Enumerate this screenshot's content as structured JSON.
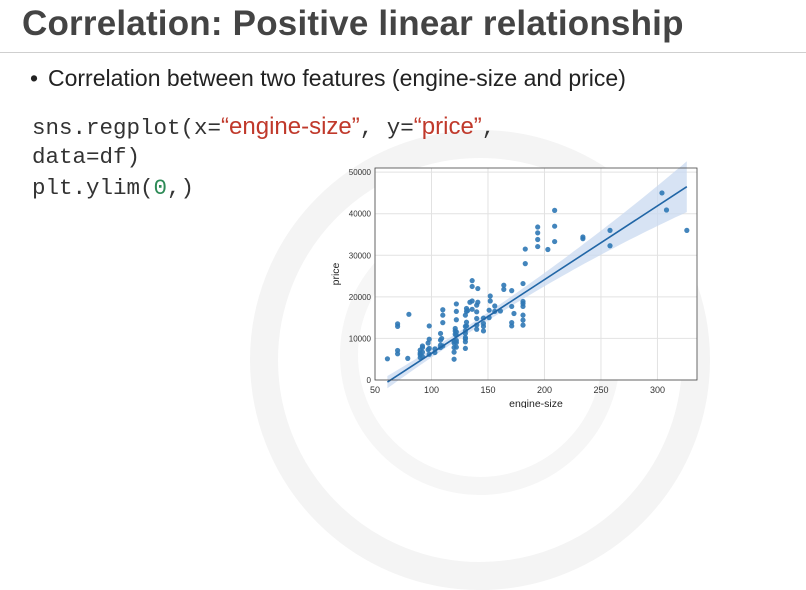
{
  "slide": {
    "title": "Correlation: Positive linear relationship",
    "bullet": "Correlation between two features (engine-size and price)"
  },
  "code": {
    "line1_a": "sns.regplot(x=",
    "line1_str1": "“engine-size”",
    "line1_b": ", y=",
    "line1_str2": "“price”",
    "line1_c": ",",
    "line2": "data=df)",
    "line3_a": "plt.ylim(",
    "line3_num": "0",
    "line3_b": ",)"
  },
  "colors": {
    "point": "#2f78b5",
    "line": "#2166a6",
    "band": "#c9daf0",
    "string": "#c0392b",
    "number": "#2e8b57"
  },
  "chart_data": {
    "type": "scatter",
    "xlabel": "engine-size",
    "ylabel": "price",
    "xlim": [
      50,
      335
    ],
    "ylim": [
      0,
      51000
    ],
    "xticks": [
      50,
      100,
      150,
      200,
      250,
      300
    ],
    "yticks": [
      0,
      10000,
      20000,
      30000,
      40000,
      50000
    ],
    "grid": true,
    "points": [
      [
        61,
        5100
      ],
      [
        70,
        6300
      ],
      [
        70,
        7100
      ],
      [
        70,
        12900
      ],
      [
        70,
        13500
      ],
      [
        79,
        5200
      ],
      [
        80,
        15800
      ],
      [
        90,
        5400
      ],
      [
        90,
        6100
      ],
      [
        90,
        6500
      ],
      [
        90,
        7200
      ],
      [
        92,
        5600
      ],
      [
        92,
        6700
      ],
      [
        92,
        7800
      ],
      [
        92,
        8200
      ],
      [
        97,
        7300
      ],
      [
        97,
        8900
      ],
      [
        98,
        6200
      ],
      [
        98,
        7600
      ],
      [
        98,
        9800
      ],
      [
        98,
        13000
      ],
      [
        103,
        6600
      ],
      [
        103,
        7500
      ],
      [
        108,
        7800
      ],
      [
        108,
        8400
      ],
      [
        108,
        9600
      ],
      [
        108,
        11200
      ],
      [
        109,
        10000
      ],
      [
        110,
        8200
      ],
      [
        110,
        13800
      ],
      [
        110,
        15600
      ],
      [
        110,
        16900
      ],
      [
        120,
        5000
      ],
      [
        120,
        6700
      ],
      [
        120,
        7800
      ],
      [
        120,
        8900
      ],
      [
        120,
        9300
      ],
      [
        121,
        11000
      ],
      [
        121,
        11800
      ],
      [
        121,
        12400
      ],
      [
        122,
        7900
      ],
      [
        122,
        9000
      ],
      [
        122,
        9500
      ],
      [
        122,
        10800
      ],
      [
        122,
        11600
      ],
      [
        122,
        14500
      ],
      [
        122,
        16500
      ],
      [
        122,
        18300
      ],
      [
        130,
        7600
      ],
      [
        130,
        9200
      ],
      [
        130,
        9900
      ],
      [
        130,
        10200
      ],
      [
        130,
        11200
      ],
      [
        130,
        11800
      ],
      [
        130,
        12900
      ],
      [
        130,
        15600
      ],
      [
        131,
        13000
      ],
      [
        131,
        13900
      ],
      [
        131,
        16500
      ],
      [
        131,
        17200
      ],
      [
        132,
        16700
      ],
      [
        134,
        18700
      ],
      [
        136,
        17000
      ],
      [
        136,
        19000
      ],
      [
        136,
        22500
      ],
      [
        136,
        23900
      ],
      [
        140,
        12200
      ],
      [
        140,
        13200
      ],
      [
        140,
        14800
      ],
      [
        140,
        16400
      ],
      [
        140,
        18000
      ],
      [
        141,
        18700
      ],
      [
        141,
        22000
      ],
      [
        146,
        11800
      ],
      [
        146,
        12900
      ],
      [
        146,
        13600
      ],
      [
        146,
        14900
      ],
      [
        151,
        15000
      ],
      [
        151,
        16800
      ],
      [
        152,
        19000
      ],
      [
        152,
        20200
      ],
      [
        156,
        16500
      ],
      [
        156,
        17800
      ],
      [
        161,
        16600
      ],
      [
        164,
        21800
      ],
      [
        164,
        22800
      ],
      [
        171,
        13000
      ],
      [
        171,
        13800
      ],
      [
        171,
        17700
      ],
      [
        171,
        21500
      ],
      [
        173,
        16000
      ],
      [
        181,
        13200
      ],
      [
        181,
        14400
      ],
      [
        181,
        15600
      ],
      [
        181,
        17700
      ],
      [
        181,
        18400
      ],
      [
        181,
        18900
      ],
      [
        181,
        23200
      ],
      [
        183,
        28000
      ],
      [
        183,
        31500
      ],
      [
        194,
        32100
      ],
      [
        194,
        33800
      ],
      [
        194,
        35400
      ],
      [
        194,
        36800
      ],
      [
        203,
        31400
      ],
      [
        209,
        33300
      ],
      [
        209,
        37000
      ],
      [
        209,
        40800
      ],
      [
        234,
        34000
      ],
      [
        234,
        34400
      ],
      [
        258,
        32300
      ],
      [
        258,
        36000
      ],
      [
        304,
        45000
      ],
      [
        308,
        40900
      ],
      [
        326,
        36000
      ]
    ],
    "regression": {
      "x": [
        61,
        326
      ],
      "y": [
        -500,
        46500
      ]
    }
  }
}
